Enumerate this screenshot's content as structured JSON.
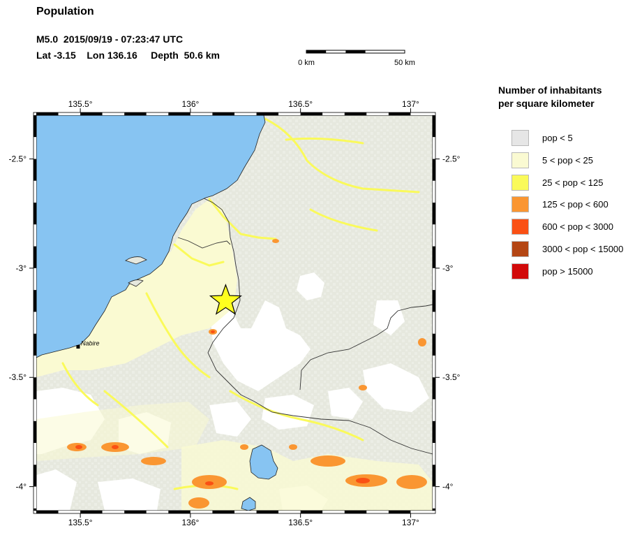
{
  "header": {
    "title": "Population",
    "event_line": "M5.0  2015/09/19 - 07:23:47 UTC",
    "location_line": "Lat -3.15    Lon 136.16     Depth  50.6 km"
  },
  "map": {
    "bounds": {
      "lon_min": 135.3,
      "lon_max": 137.1,
      "lat_min": -4.11,
      "lat_max": -2.3
    },
    "lon_ticks": [
      {
        "value": 135.5,
        "label": "135.5°"
      },
      {
        "value": 136.0,
        "label": "136°"
      },
      {
        "value": 136.5,
        "label": "136.5°"
      },
      {
        "value": 137.0,
        "label": "137°"
      }
    ],
    "lat_ticks": [
      {
        "value": -2.5,
        "label": "-2.5°"
      },
      {
        "value": -3.0,
        "label": "-3°"
      },
      {
        "value": -3.5,
        "label": "-3.5°"
      },
      {
        "value": -4.0,
        "label": "-4°"
      }
    ],
    "epicenter": {
      "lat": -3.15,
      "lon": 136.16
    },
    "places": [
      {
        "name": "Nabire",
        "lat": -3.36,
        "lon": 135.49
      }
    ],
    "colors": {
      "water": "#87c4f2",
      "land_base": "#e6e8de",
      "no_data": "#ffffff",
      "epicenter_fill": "#ffff1e"
    }
  },
  "scale_bar": {
    "start_label": "0 km",
    "end_label": "50 km"
  },
  "legend": {
    "title_line1": "Number of inhabitants",
    "title_line2": "per square kilometer",
    "items": [
      {
        "label": "pop < 5",
        "color": "#e6e6e6"
      },
      {
        "label": "5 < pop < 25",
        "color": "#fafad2"
      },
      {
        "label": "25 < pop < 125",
        "color": "#fafa5a"
      },
      {
        "label": "125 < pop < 600",
        "color": "#fa9632"
      },
      {
        "label": "600 < pop < 3000",
        "color": "#fa5014"
      },
      {
        "label": "3000 < pop < 15000",
        "color": "#b44614"
      },
      {
        "label": "pop > 15000",
        "color": "#d20a0a"
      }
    ]
  }
}
